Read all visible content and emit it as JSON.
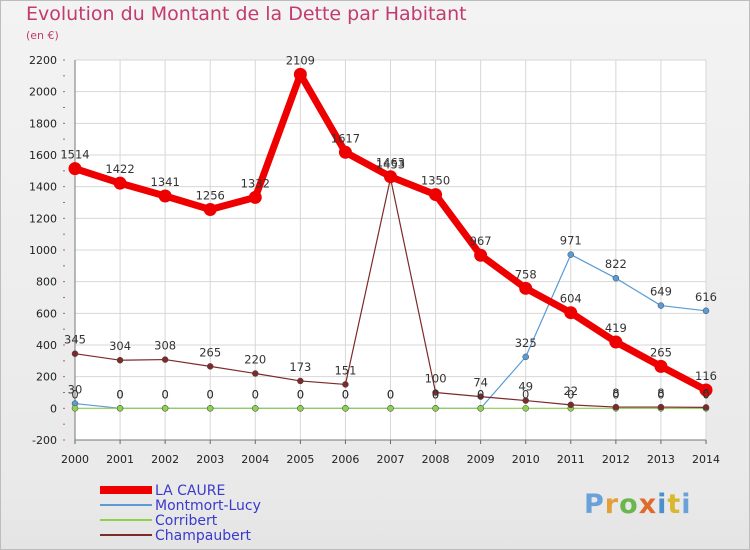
{
  "title": "Evolution du Montant de la Dette par Habitant",
  "subtitle": "(en €)",
  "logo": {
    "text": "Proxiti",
    "colors": [
      "#6aa1d8",
      "#e2a037",
      "#6bb64d",
      "#e06a2a",
      "#4c8fcf",
      "#d9b82e"
    ]
  },
  "chart_data": {
    "type": "line",
    "title": "Evolution du Montant de la Dette par Habitant",
    "subtitle": "(en €)",
    "x": [
      "2000",
      "2001",
      "2002",
      "2003",
      "2004",
      "2005",
      "2006",
      "2007",
      "2008",
      "2009",
      "2010",
      "2011",
      "2012",
      "2013",
      "2014"
    ],
    "ylim": [
      -200,
      2200
    ],
    "yticks": [
      -200,
      0,
      200,
      400,
      600,
      800,
      1000,
      1200,
      1400,
      1600,
      1800,
      2000,
      2200
    ],
    "grid": true,
    "legend": "bottom-left",
    "series": [
      {
        "name": "LA CAURE",
        "color": "#ee0000",
        "values": [
          1514,
          1422,
          1341,
          1256,
          1332,
          2109,
          1617,
          1463,
          1350,
          967,
          758,
          604,
          419,
          265,
          116
        ],
        "labels": [
          "1514",
          "1422",
          "1341",
          "1256",
          "1332",
          "2109",
          "1617",
          "1463",
          "1350",
          "967",
          "758",
          "604",
          "419",
          "265",
          "116"
        ]
      },
      {
        "name": "Montmort-Lucy",
        "color": "#5a9bd5",
        "values": [
          30,
          0,
          0,
          0,
          0,
          0,
          0,
          0,
          0,
          0,
          325,
          971,
          822,
          649,
          616
        ],
        "labels": [
          "30",
          "0",
          "0",
          "0",
          "0",
          "0",
          "0",
          "0",
          "0",
          "0",
          "325",
          "971",
          "822",
          "649",
          "616"
        ]
      },
      {
        "name": "Corribert",
        "color": "#8fd14f",
        "values": [
          0,
          0,
          0,
          0,
          0,
          0,
          0,
          0,
          0,
          0,
          0,
          0,
          0,
          0,
          0
        ],
        "labels": [
          "0",
          "0",
          "0",
          "0",
          "0",
          "0",
          "0",
          "0",
          "0",
          "0",
          "0",
          "0",
          "0",
          "0",
          "0"
        ]
      },
      {
        "name": "Champaubert",
        "color": "#7d2a2a",
        "values": [
          345,
          304,
          308,
          265,
          220,
          173,
          151,
          1453,
          100,
          74,
          49,
          22,
          8,
          8,
          6
        ],
        "labels": [
          "345",
          "304",
          "308",
          "265",
          "220",
          "173",
          "151",
          "1453",
          "100",
          "74",
          "49",
          "22",
          "8",
          "8",
          "6"
        ]
      }
    ]
  }
}
